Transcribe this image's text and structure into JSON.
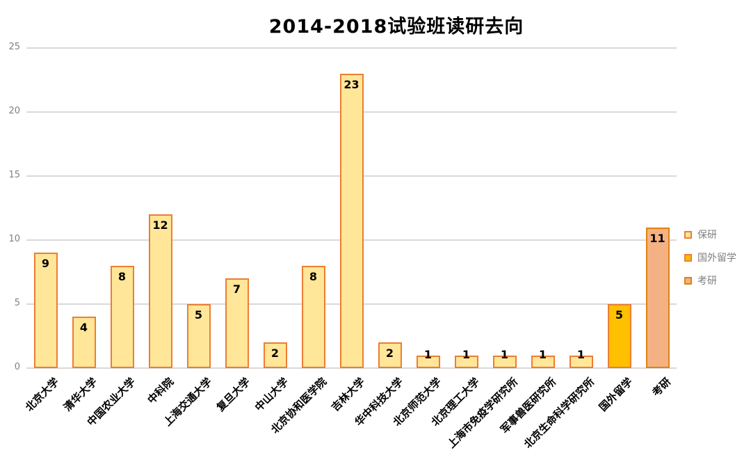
{
  "chart_data": {
    "type": "bar",
    "title": "2014-2018试验班读研去向",
    "categories": [
      "北京大学",
      "清华大学",
      "中国农业大学",
      "中科院",
      "上海交通大学",
      "复旦大学",
      "中山大学",
      "北京协和医学院",
      "吉林大学",
      "华中科技大学",
      "北京师范大学",
      "北京理工大学",
      "上海市免疫学研究所",
      "军事兽医研究所",
      "北京生命科学研究所",
      "国外留学",
      "考研"
    ],
    "values": [
      9,
      4,
      8,
      12,
      5,
      7,
      2,
      8,
      23,
      2,
      1,
      1,
      1,
      1,
      1,
      5,
      11
    ],
    "bar_series": [
      0,
      0,
      0,
      0,
      0,
      0,
      0,
      0,
      0,
      0,
      0,
      0,
      0,
      0,
      0,
      1,
      2
    ],
    "series": [
      {
        "name": "保研",
        "fill": "#FFE699",
        "border": "#ED7D31"
      },
      {
        "name": "国外留学",
        "fill": "#FFC000",
        "border": "#ED7D31"
      },
      {
        "name": "考研",
        "fill": "#F4B183",
        "border": "#E08214"
      }
    ],
    "y_ticks": [
      0,
      5,
      10,
      15,
      20,
      25
    ],
    "ylim": [
      0,
      25
    ],
    "grid": true,
    "legend_position": "right",
    "xlabel": "",
    "ylabel": "",
    "colors": {
      "grid": "#D9D9D9",
      "axis_text": "#808080",
      "data_label_text": "#000000",
      "legend_text": "#7F7F7F",
      "title_text": "#000000",
      "background": "#FFFFFF"
    }
  }
}
